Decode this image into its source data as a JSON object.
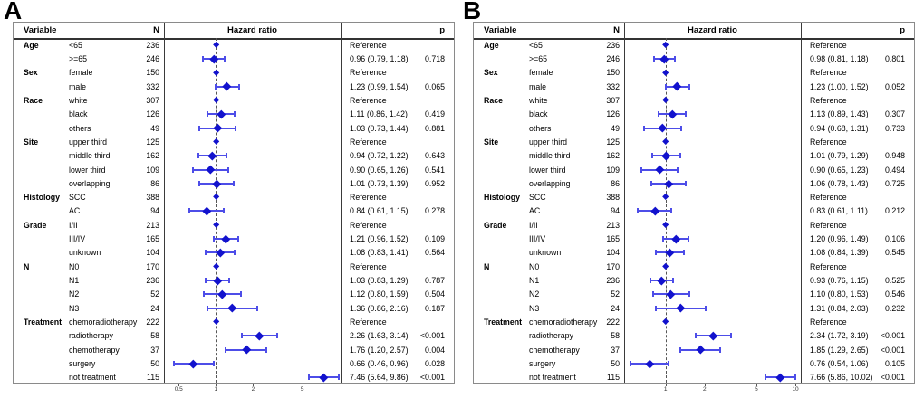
{
  "figure": {
    "description": "Two-panel forest plot of hazard ratios"
  },
  "colors": {
    "marker": "#1212cd",
    "ci_line": "#4d4de8",
    "refline": "#565656",
    "divider": "#3a3a3a",
    "outer_border": "#8a8a8a"
  },
  "chart_data": [
    {
      "type": "forest",
      "label": "A",
      "header": {
        "variable": "Variable",
        "n": "N",
        "hazard_ratio": "Hazard ratio",
        "p": "p"
      },
      "axis": {
        "scale": "log",
        "min": 0.38,
        "max": 10.2,
        "ticks": [
          0.5,
          1,
          2,
          5
        ],
        "tick_labels": [
          "0.5",
          "1",
          "2",
          "5"
        ],
        "refline": 1
      },
      "rows": [
        {
          "group": "Age",
          "level": "<65",
          "n": "236",
          "est": null,
          "lo": null,
          "hi": null,
          "text": "Reference",
          "p": ""
        },
        {
          "group": "",
          "level": ">=65",
          "n": "246",
          "est": 0.96,
          "lo": 0.79,
          "hi": 1.18,
          "text": "0.96 (0.79, 1.18)",
          "p": "0.718"
        },
        {
          "group": "Sex",
          "level": "female",
          "n": "150",
          "est": null,
          "lo": null,
          "hi": null,
          "text": "Reference",
          "p": ""
        },
        {
          "group": "",
          "level": "male",
          "n": "332",
          "est": 1.23,
          "lo": 0.99,
          "hi": 1.54,
          "text": "1.23 (0.99, 1.54)",
          "p": "0.065"
        },
        {
          "group": "Race",
          "level": "white",
          "n": "307",
          "est": null,
          "lo": null,
          "hi": null,
          "text": "Reference",
          "p": ""
        },
        {
          "group": "",
          "level": "black",
          "n": "126",
          "est": 1.11,
          "lo": 0.86,
          "hi": 1.42,
          "text": "1.11 (0.86, 1.42)",
          "p": "0.419"
        },
        {
          "group": "",
          "level": "others",
          "n": "49",
          "est": 1.03,
          "lo": 0.73,
          "hi": 1.44,
          "text": "1.03 (0.73, 1.44)",
          "p": "0.881"
        },
        {
          "group": "Site",
          "level": "upper third",
          "n": "125",
          "est": null,
          "lo": null,
          "hi": null,
          "text": "Reference",
          "p": ""
        },
        {
          "group": "",
          "level": "middle third",
          "n": "162",
          "est": 0.94,
          "lo": 0.72,
          "hi": 1.22,
          "text": "0.94 (0.72, 1.22)",
          "p": "0.643"
        },
        {
          "group": "",
          "level": "lower third",
          "n": "109",
          "est": 0.9,
          "lo": 0.65,
          "hi": 1.26,
          "text": "0.90 (0.65, 1.26)",
          "p": "0.541"
        },
        {
          "group": "",
          "level": "overlapping",
          "n": "86",
          "est": 1.01,
          "lo": 0.73,
          "hi": 1.39,
          "text": "1.01 (0.73, 1.39)",
          "p": "0.952"
        },
        {
          "group": "Histology",
          "level": "SCC",
          "n": "388",
          "est": null,
          "lo": null,
          "hi": null,
          "text": "Reference",
          "p": ""
        },
        {
          "group": "",
          "level": "AC",
          "n": "94",
          "est": 0.84,
          "lo": 0.61,
          "hi": 1.15,
          "text": "0.84 (0.61, 1.15)",
          "p": "0.278"
        },
        {
          "group": "Grade",
          "level": "I/II",
          "n": "213",
          "est": null,
          "lo": null,
          "hi": null,
          "text": "Reference",
          "p": ""
        },
        {
          "group": "",
          "level": "III/IV",
          "n": "165",
          "est": 1.21,
          "lo": 0.96,
          "hi": 1.52,
          "text": "1.21 (0.96, 1.52)",
          "p": "0.109"
        },
        {
          "group": "",
          "level": "unknown",
          "n": "104",
          "est": 1.08,
          "lo": 0.83,
          "hi": 1.41,
          "text": "1.08 (0.83, 1.41)",
          "p": "0.564"
        },
        {
          "group": "N",
          "level": "N0",
          "n": "170",
          "est": null,
          "lo": null,
          "hi": null,
          "text": "Reference",
          "p": ""
        },
        {
          "group": "",
          "level": "N1",
          "n": "236",
          "est": 1.03,
          "lo": 0.83,
          "hi": 1.29,
          "text": "1.03 (0.83, 1.29)",
          "p": "0.787"
        },
        {
          "group": "",
          "level": "N2",
          "n": "52",
          "est": 1.12,
          "lo": 0.8,
          "hi": 1.59,
          "text": "1.12 (0.80, 1.59)",
          "p": "0.504"
        },
        {
          "group": "",
          "level": "N3",
          "n": "24",
          "est": 1.36,
          "lo": 0.86,
          "hi": 2.16,
          "text": "1.36 (0.86, 2.16)",
          "p": "0.187"
        },
        {
          "group": "Treatment",
          "level": "chemoradiotherapy",
          "n": "222",
          "est": null,
          "lo": null,
          "hi": null,
          "text": "Reference",
          "p": ""
        },
        {
          "group": "",
          "level": "radiotherapy",
          "n": "58",
          "est": 2.26,
          "lo": 1.63,
          "hi": 3.14,
          "text": "2.26 (1.63, 3.14)",
          "p": "<0.001"
        },
        {
          "group": "",
          "level": "chemotherapy",
          "n": "37",
          "est": 1.76,
          "lo": 1.2,
          "hi": 2.57,
          "text": "1.76 (1.20, 2.57)",
          "p": "0.004"
        },
        {
          "group": "",
          "level": "surgery",
          "n": "50",
          "est": 0.66,
          "lo": 0.46,
          "hi": 0.96,
          "text": "0.66 (0.46, 0.96)",
          "p": "0.028"
        },
        {
          "group": "",
          "level": "not treatment",
          "n": "115",
          "est": 7.46,
          "lo": 5.64,
          "hi": 9.86,
          "text": "7.46 (5.64, 9.86)",
          "p": "<0.001"
        }
      ]
    },
    {
      "type": "forest",
      "label": "B",
      "header": {
        "variable": "Variable",
        "n": "N",
        "hazard_ratio": "Hazard ratio",
        "p": "p"
      },
      "axis": {
        "scale": "log",
        "min": 0.48,
        "max": 11.0,
        "ticks": [
          1,
          2,
          5,
          10
        ],
        "tick_labels": [
          "1",
          "2",
          "5",
          "10"
        ],
        "refline": 1
      },
      "rows": [
        {
          "group": "Age",
          "level": "<65",
          "n": "236",
          "est": null,
          "lo": null,
          "hi": null,
          "text": "Reference",
          "p": ""
        },
        {
          "group": "",
          "level": ">=65",
          "n": "246",
          "est": 0.98,
          "lo": 0.81,
          "hi": 1.18,
          "text": "0.98 (0.81, 1.18)",
          "p": "0.801"
        },
        {
          "group": "Sex",
          "level": "female",
          "n": "150",
          "est": null,
          "lo": null,
          "hi": null,
          "text": "Reference",
          "p": ""
        },
        {
          "group": "",
          "level": "male",
          "n": "332",
          "est": 1.23,
          "lo": 1.0,
          "hi": 1.52,
          "text": "1.23 (1.00, 1.52)",
          "p": "0.052"
        },
        {
          "group": "Race",
          "level": "white",
          "n": "307",
          "est": null,
          "lo": null,
          "hi": null,
          "text": "Reference",
          "p": ""
        },
        {
          "group": "",
          "level": "black",
          "n": "126",
          "est": 1.13,
          "lo": 0.89,
          "hi": 1.43,
          "text": "1.13 (0.89, 1.43)",
          "p": "0.307"
        },
        {
          "group": "",
          "level": "others",
          "n": "49",
          "est": 0.94,
          "lo": 0.68,
          "hi": 1.31,
          "text": "0.94 (0.68, 1.31)",
          "p": "0.733"
        },
        {
          "group": "Site",
          "level": "upper third",
          "n": "125",
          "est": null,
          "lo": null,
          "hi": null,
          "text": "Reference",
          "p": ""
        },
        {
          "group": "",
          "level": "middle third",
          "n": "162",
          "est": 1.01,
          "lo": 0.79,
          "hi": 1.29,
          "text": "1.01 (0.79, 1.29)",
          "p": "0.948"
        },
        {
          "group": "",
          "level": "lower third",
          "n": "109",
          "est": 0.9,
          "lo": 0.65,
          "hi": 1.23,
          "text": "0.90 (0.65, 1.23)",
          "p": "0.494"
        },
        {
          "group": "",
          "level": "overlapping",
          "n": "86",
          "est": 1.06,
          "lo": 0.78,
          "hi": 1.43,
          "text": "1.06 (0.78, 1.43)",
          "p": "0.725"
        },
        {
          "group": "Histology",
          "level": "SCC",
          "n": "388",
          "est": null,
          "lo": null,
          "hi": null,
          "text": "Reference",
          "p": ""
        },
        {
          "group": "",
          "level": "AC",
          "n": "94",
          "est": 0.83,
          "lo": 0.61,
          "hi": 1.11,
          "text": "0.83 (0.61, 1.11)",
          "p": "0.212"
        },
        {
          "group": "Grade",
          "level": "I/II",
          "n": "213",
          "est": null,
          "lo": null,
          "hi": null,
          "text": "Reference",
          "p": ""
        },
        {
          "group": "",
          "level": "III/IV",
          "n": "165",
          "est": 1.2,
          "lo": 0.96,
          "hi": 1.49,
          "text": "1.20 (0.96, 1.49)",
          "p": "0.106"
        },
        {
          "group": "",
          "level": "unknown",
          "n": "104",
          "est": 1.08,
          "lo": 0.84,
          "hi": 1.39,
          "text": "1.08 (0.84, 1.39)",
          "p": "0.545"
        },
        {
          "group": "N",
          "level": "N0",
          "n": "170",
          "est": null,
          "lo": null,
          "hi": null,
          "text": "Reference",
          "p": ""
        },
        {
          "group": "",
          "level": "N1",
          "n": "236",
          "est": 0.93,
          "lo": 0.76,
          "hi": 1.15,
          "text": "0.93 (0.76, 1.15)",
          "p": "0.525"
        },
        {
          "group": "",
          "level": "N2",
          "n": "52",
          "est": 1.1,
          "lo": 0.8,
          "hi": 1.53,
          "text": "1.10 (0.80, 1.53)",
          "p": "0.546"
        },
        {
          "group": "",
          "level": "N3",
          "n": "24",
          "est": 1.31,
          "lo": 0.84,
          "hi": 2.03,
          "text": "1.31 (0.84, 2.03)",
          "p": "0.232"
        },
        {
          "group": "Treatment",
          "level": "chemoradiotherapy",
          "n": "222",
          "est": null,
          "lo": null,
          "hi": null,
          "text": "Reference",
          "p": ""
        },
        {
          "group": "",
          "level": "radiotherapy",
          "n": "58",
          "est": 2.34,
          "lo": 1.72,
          "hi": 3.19,
          "text": "2.34 (1.72, 3.19)",
          "p": "<0.001"
        },
        {
          "group": "",
          "level": "chemotherapy",
          "n": "37",
          "est": 1.85,
          "lo": 1.29,
          "hi": 2.65,
          "text": "1.85 (1.29, 2.65)",
          "p": "<0.001"
        },
        {
          "group": "",
          "level": "surgery",
          "n": "50",
          "est": 0.76,
          "lo": 0.54,
          "hi": 1.06,
          "text": "0.76 (0.54, 1.06)",
          "p": "0.105"
        },
        {
          "group": "",
          "level": "not treatment",
          "n": "115",
          "est": 7.66,
          "lo": 5.86,
          "hi": 10.02,
          "text": "7.66 (5.86, 10.02)",
          "p": "<0.001"
        }
      ]
    }
  ]
}
